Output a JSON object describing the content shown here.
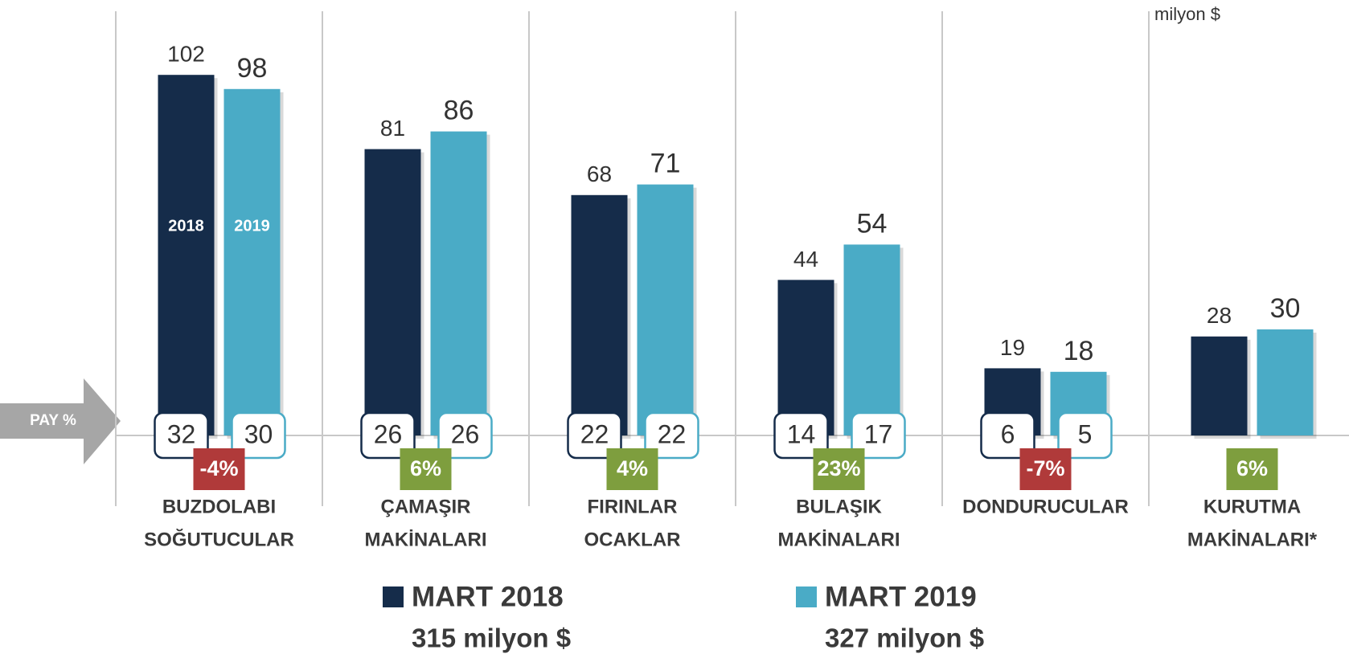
{
  "chart_data": {
    "type": "bar",
    "unit": "milyon $",
    "share_label": "PAY %",
    "categories": [
      [
        "BUZDOLABI",
        "SOĞUTUCULAR"
      ],
      [
        "ÇAMAŞIR",
        "MAKİNALARI"
      ],
      [
        "FIRINLAR",
        "OCAKLAR"
      ],
      [
        "BULAŞIK",
        "MAKİNALARI"
      ],
      [
        "DONDURUCULAR"
      ],
      [
        "KURUTMA",
        "MAKİNALARI*"
      ]
    ],
    "series": [
      {
        "name": "MART 2018",
        "short_name": "2018",
        "total": "315 milyon $",
        "color": "#152c4a",
        "values": [
          102,
          81,
          68,
          44,
          19,
          28
        ],
        "share": [
          32,
          26,
          22,
          14,
          6,
          null
        ]
      },
      {
        "name": "MART 2019",
        "short_name": "2019",
        "total": "327 milyon $",
        "color": "#4aabc6",
        "values": [
          98,
          86,
          71,
          54,
          18,
          30
        ],
        "share": [
          30,
          26,
          22,
          17,
          5,
          null
        ]
      }
    ],
    "changes": [
      -4,
      6,
      4,
      23,
      -7,
      6
    ],
    "change_labels": [
      "-4%",
      "6%",
      "4%",
      "23%",
      "-7%",
      "6%"
    ],
    "ylim": [
      0,
      120
    ]
  }
}
